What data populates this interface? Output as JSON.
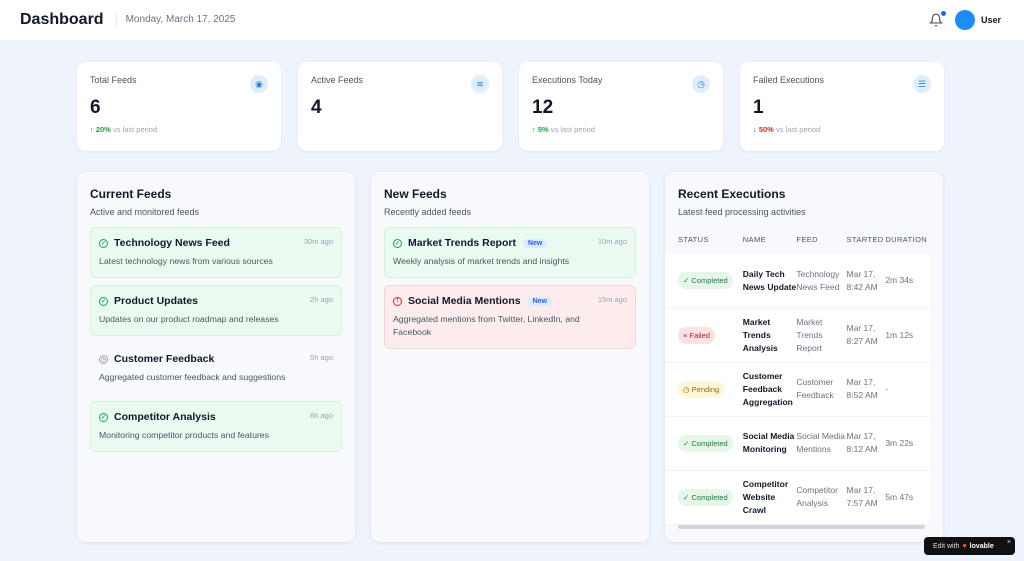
{
  "header": {
    "title": "Dashboard",
    "date": "Monday, March 17, 2025",
    "user": "User"
  },
  "stats": [
    {
      "label": "Total Feeds",
      "value": "6",
      "change": "20%",
      "direction": "up",
      "suffix": "vs last period",
      "icon": "rss-icon"
    },
    {
      "label": "Active Feeds",
      "value": "4",
      "icon": "database-icon"
    },
    {
      "label": "Executions Today",
      "value": "12",
      "change": "5%",
      "direction": "up",
      "suffix": "vs last period",
      "icon": "clock-icon"
    },
    {
      "label": "Failed Executions",
      "value": "1",
      "change": "50%",
      "direction": "down",
      "suffix": "vs last period",
      "icon": "list-icon"
    }
  ],
  "current_feeds": {
    "title": "Current Feeds",
    "subtitle": "Active and monitored feeds",
    "items": [
      {
        "name": "Technology News Feed",
        "desc": "Latest technology news from various sources",
        "time": "30m ago",
        "status": "active"
      },
      {
        "name": "Product Updates",
        "desc": "Updates on our product roadmap and releases",
        "time": "2h ago",
        "status": "active"
      },
      {
        "name": "Customer Feedback",
        "desc": "Aggregated customer feedback and suggestions",
        "time": "5h ago",
        "status": "pending"
      },
      {
        "name": "Competitor Analysis",
        "desc": "Monitoring competitor products and features",
        "time": "8h ago",
        "status": "active"
      }
    ]
  },
  "new_feeds": {
    "title": "New Feeds",
    "subtitle": "Recently added feeds",
    "badge": "New",
    "items": [
      {
        "name": "Market Trends Report",
        "desc": "Weekly analysis of market trends and insights",
        "time": "10m ago",
        "status": "active"
      },
      {
        "name": "Social Media Mentions",
        "desc": "Aggregated mentions from Twitter, LinkedIn, and Facebook",
        "time": "15m ago",
        "status": "error"
      }
    ]
  },
  "executions": {
    "title": "Recent Executions",
    "subtitle": "Latest feed processing activities",
    "columns": [
      "STATUS",
      "NAME",
      "FEED",
      "STARTED",
      "DURATION"
    ],
    "rows": [
      {
        "status": "Completed",
        "name": "Daily Tech News Update",
        "feed": "Technology News Feed",
        "started": "Mar 17, 8:42 AM",
        "duration": "2m 34s"
      },
      {
        "status": "Failed",
        "name": "Market Trends Analysis",
        "feed": "Market Trends Report",
        "started": "Mar 17, 8:27 AM",
        "duration": "1m 12s"
      },
      {
        "status": "Pending",
        "name": "Customer Feedback Aggregation",
        "feed": "Customer Feedback",
        "started": "Mar 17, 8:52 AM",
        "duration": "-"
      },
      {
        "status": "Completed",
        "name": "Social Media Monitoring",
        "feed": "Social Media Mentions",
        "started": "Mar 17, 8:12 AM",
        "duration": "3m 22s"
      },
      {
        "status": "Completed",
        "name": "Competitor Website Crawl",
        "feed": "Competitor Analysis",
        "started": "Mar 17, 7:57 AM",
        "duration": "5m 47s"
      }
    ]
  },
  "badge": {
    "edit_with": "Edit with",
    "brand": "lovable"
  }
}
